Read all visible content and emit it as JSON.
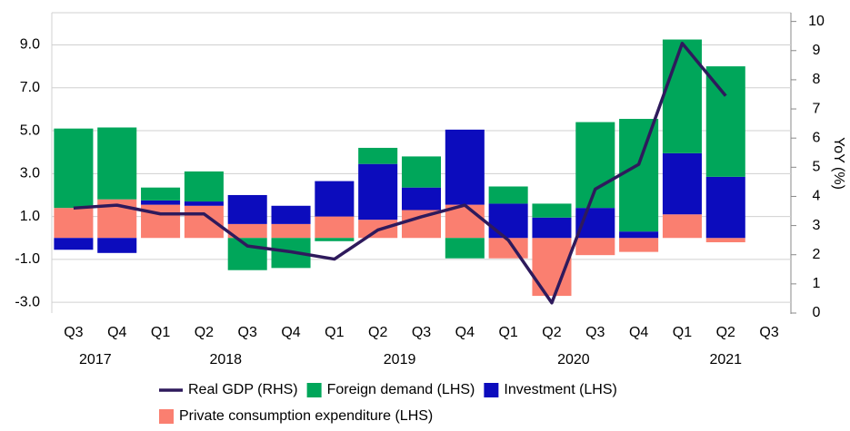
{
  "chart_data": {
    "type": "bar",
    "categories": [
      "Q3",
      "Q4",
      "Q1",
      "Q2",
      "Q3",
      "Q4",
      "Q1",
      "Q2",
      "Q3",
      "Q4",
      "Q1",
      "Q2",
      "Q3",
      "Q4",
      "Q1",
      "Q2",
      "Q3"
    ],
    "years": [
      {
        "label": "2017",
        "categories": 2
      },
      {
        "label": "2018",
        "categories": 4
      },
      {
        "label": "2019",
        "categories": 4
      },
      {
        "label": "2020",
        "categories": 4
      },
      {
        "label": "2021",
        "categories": 3
      }
    ],
    "y2_label": "YoY (%)",
    "ylim": [
      -3.5,
      10.5
    ],
    "yticks": [
      {
        "value": -3,
        "label": "-3.0"
      },
      {
        "value": -1,
        "label": "-1.0"
      },
      {
        "value": 1,
        "label": "1.0"
      },
      {
        "value": 3,
        "label": "3.0"
      },
      {
        "value": 5,
        "label": "5.0"
      },
      {
        "value": 7,
        "label": "7.0"
      },
      {
        "value": 9,
        "label": "9.0"
      }
    ],
    "y2lim": [
      0,
      10.3
    ],
    "y2ticks": [
      0,
      1,
      2,
      3,
      4,
      5,
      6,
      7,
      8,
      9,
      10
    ],
    "grid": true,
    "series": [
      {
        "name": "Real GDP (RHS)",
        "type": "line",
        "axis": "y2",
        "color": "#2e1a5c",
        "values": [
          3.6,
          3.7,
          3.4,
          3.4,
          2.3,
          2.1,
          1.85,
          2.85,
          3.3,
          3.7,
          2.5,
          0.35,
          4.25,
          5.1,
          9.25,
          7.45,
          null
        ]
      },
      {
        "name": "Foreign demand (LHS)",
        "type": "bar",
        "color": "#00a65a",
        "values": [
          3.7,
          3.35,
          0.6,
          1.4,
          -1.5,
          -1.4,
          -0.15,
          0.75,
          1.45,
          -0.95,
          0.8,
          0.65,
          4.0,
          5.25,
          5.3,
          5.15,
          null
        ]
      },
      {
        "name": "Investment (LHS)",
        "type": "bar",
        "color": "#0c0cbd",
        "values": [
          -0.55,
          -0.7,
          0.2,
          0.2,
          1.35,
          0.85,
          1.65,
          2.6,
          1.05,
          3.5,
          1.6,
          0.95,
          1.4,
          0.3,
          2.85,
          2.85,
          null
        ]
      },
      {
        "name": "Private consumption expenditure (LHS)",
        "type": "bar",
        "color": "#fa7f70",
        "values": [
          1.4,
          1.8,
          1.55,
          1.5,
          0.65,
          0.65,
          1.0,
          0.85,
          1.3,
          1.55,
          -0.95,
          -2.7,
          -0.8,
          -0.65,
          1.1,
          -0.2,
          null
        ]
      }
    ]
  }
}
